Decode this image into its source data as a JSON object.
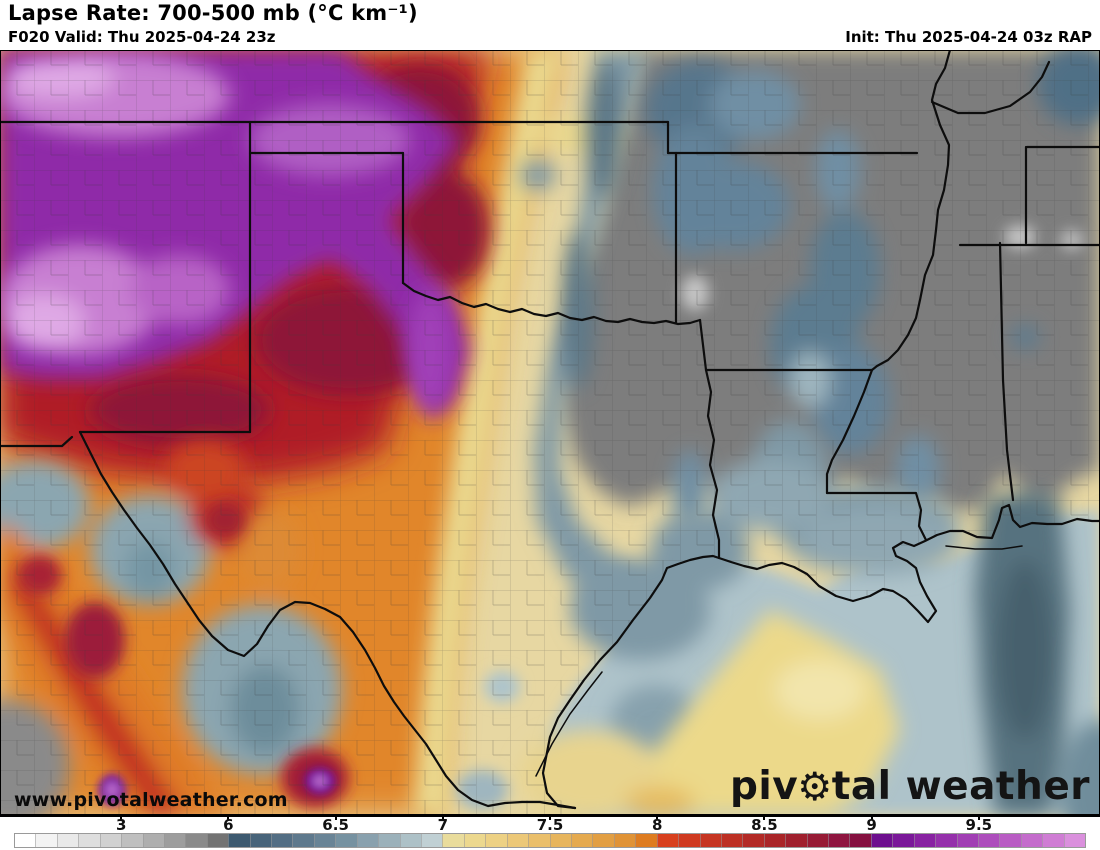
{
  "header": {
    "title": "Lapse Rate: 700-500 mb (°C km⁻¹)",
    "forecast": "F020 Valid: Thu 2025-04-24 23z",
    "init": "Init: Thu 2025-04-24 03z RAP"
  },
  "map": {
    "watermark_url": "www.pivotalweather.com",
    "logo": {
      "pre": "piv",
      "gear_icon": "⚙",
      "post": "tal weather"
    }
  },
  "colorbar": {
    "unit": "°C km⁻¹",
    "tick_labels": [
      "3",
      "6",
      "6.5",
      "7",
      "7.5",
      "8",
      "8.5",
      "9",
      "9.5"
    ],
    "tick_positions_pct": [
      10,
      20,
      30,
      40,
      50,
      60,
      70,
      80,
      90
    ],
    "cells": [
      "#ffffff",
      "#f3f3f3",
      "#e9e9e9",
      "#dedede",
      "#d1d1d1",
      "#bfbfbf",
      "#aeaeae",
      "#9d9d9d",
      "#8a8a8a",
      "#737373",
      "#3d5a70",
      "#48647a",
      "#536e84",
      "#5e798d",
      "#698496",
      "#7692a1",
      "#89a1ae",
      "#9bb1ba",
      "#adc1c7",
      "#c0d0d4",
      "#e9dc9c",
      "#ecd88e",
      "#edd184",
      "#ecc878",
      "#eabf6b",
      "#e7b55d",
      "#e5aa4f",
      "#e29f43",
      "#e09336",
      "#de7c20",
      "#d8401e",
      "#cf3a20",
      "#c63522",
      "#bd3024",
      "#b32a26",
      "#aa2528",
      "#a0202e",
      "#971b35",
      "#8f1540",
      "#851040",
      "#6d0f8e",
      "#7a1899",
      "#8822a2",
      "#9530ab",
      "#a13eb4",
      "#ad4dbc",
      "#b95cc4",
      "#c46ccc",
      "#cf7dd4",
      "#da90dd"
    ]
  }
}
